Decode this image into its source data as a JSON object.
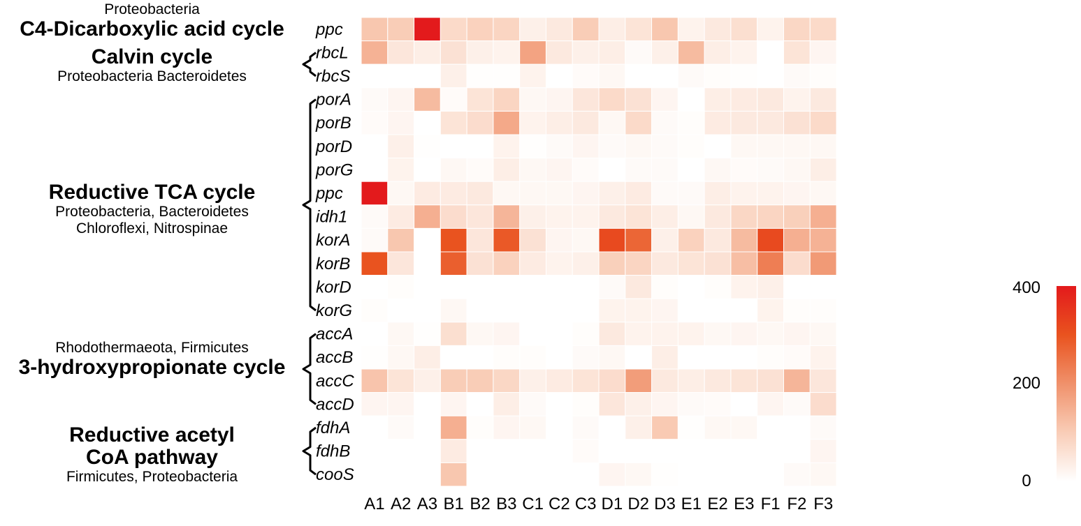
{
  "chart_data": {
    "type": "heatmap",
    "columns": [
      "A1",
      "A2",
      "A3",
      "B1",
      "B2",
      "B3",
      "C1",
      "C2",
      "C3",
      "D1",
      "D2",
      "D3",
      "E1",
      "E2",
      "E3",
      "F1",
      "F2",
      "F3"
    ],
    "rows": [
      "ppc",
      "rbcL",
      "rbcS",
      "porA",
      "porB",
      "porD",
      "porG",
      "ppc",
      "idh1",
      "korA",
      "korB",
      "korD",
      "korG",
      "accA",
      "accB",
      "accC",
      "accD",
      "fdhA",
      "fdhB",
      "cooS"
    ],
    "values": [
      [
        110,
        100,
        400,
        75,
        90,
        85,
        30,
        45,
        100,
        35,
        55,
        110,
        25,
        45,
        65,
        25,
        80,
        75
      ],
      [
        145,
        50,
        35,
        60,
        30,
        25,
        170,
        45,
        30,
        35,
        10,
        30,
        130,
        35,
        25,
        0,
        55,
        20
      ],
      [
        0,
        0,
        0,
        30,
        3,
        3,
        25,
        0,
        8,
        15,
        0,
        0,
        10,
        5,
        3,
        0,
        10,
        5
      ],
      [
        10,
        20,
        130,
        8,
        55,
        85,
        15,
        20,
        50,
        75,
        60,
        20,
        0,
        35,
        40,
        45,
        25,
        45
      ],
      [
        8,
        20,
        0,
        55,
        70,
        160,
        25,
        35,
        45,
        15,
        75,
        10,
        5,
        40,
        45,
        45,
        60,
        75
      ],
      [
        0,
        30,
        3,
        0,
        0,
        25,
        3,
        10,
        20,
        10,
        15,
        10,
        5,
        0,
        15,
        15,
        15,
        15
      ],
      [
        0,
        25,
        0,
        15,
        8,
        35,
        15,
        20,
        8,
        0,
        10,
        10,
        0,
        15,
        8,
        10,
        15,
        35
      ],
      [
        400,
        15,
        40,
        40,
        45,
        15,
        15,
        15,
        20,
        30,
        40,
        10,
        10,
        35,
        25,
        25,
        20,
        15
      ],
      [
        10,
        40,
        150,
        70,
        50,
        140,
        30,
        25,
        25,
        45,
        55,
        35,
        15,
        45,
        80,
        85,
        95,
        150
      ],
      [
        10,
        110,
        0,
        300,
        50,
        290,
        60,
        20,
        15,
        315,
        270,
        30,
        90,
        45,
        130,
        315,
        150,
        145
      ],
      [
        300,
        50,
        0,
        280,
        60,
        90,
        40,
        25,
        30,
        95,
        85,
        45,
        55,
        60,
        125,
        230,
        70,
        185
      ],
      [
        0,
        5,
        0,
        0,
        0,
        0,
        0,
        0,
        0,
        10,
        45,
        5,
        0,
        5,
        25,
        30,
        0,
        0
      ],
      [
        5,
        0,
        0,
        15,
        0,
        0,
        0,
        0,
        0,
        25,
        25,
        20,
        0,
        0,
        0,
        25,
        5,
        5
      ],
      [
        0,
        15,
        3,
        65,
        15,
        20,
        0,
        0,
        5,
        45,
        25,
        25,
        25,
        15,
        20,
        15,
        20,
        15
      ],
      [
        3,
        15,
        35,
        0,
        0,
        5,
        5,
        0,
        10,
        15,
        0,
        35,
        0,
        0,
        0,
        5,
        8,
        25
      ],
      [
        115,
        55,
        30,
        100,
        100,
        80,
        30,
        40,
        55,
        70,
        180,
        45,
        35,
        45,
        55,
        60,
        140,
        50
      ],
      [
        20,
        20,
        0,
        20,
        0,
        35,
        10,
        0,
        5,
        50,
        30,
        20,
        10,
        8,
        0,
        20,
        10,
        70
      ],
      [
        0,
        10,
        0,
        150,
        5,
        20,
        15,
        0,
        10,
        0,
        30,
        105,
        3,
        15,
        15,
        0,
        0,
        10
      ],
      [
        0,
        0,
        0,
        40,
        0,
        0,
        0,
        0,
        8,
        0,
        0,
        0,
        0,
        0,
        0,
        0,
        0,
        20
      ],
      [
        0,
        0,
        0,
        110,
        0,
        0,
        0,
        0,
        0,
        20,
        15,
        3,
        0,
        0,
        0,
        0,
        10,
        15
      ]
    ],
    "colorbar": {
      "min": 0,
      "max": 400,
      "ticks": [
        "400",
        "200",
        "0"
      ]
    },
    "groups": [
      {
        "rows": [
          0,
          0
        ],
        "lines": [
          {
            "text": "Proteobacteria",
            "style": "small"
          },
          {
            "text": "C4-Dicarboxylic acid cycle",
            "style": "big"
          }
        ]
      },
      {
        "rows": [
          1,
          2
        ],
        "lines": [
          {
            "text": "Calvin cycle",
            "style": "big"
          },
          {
            "text": "Proteobacteria Bacteroidetes",
            "style": "small"
          }
        ]
      },
      {
        "rows": [
          3,
          12
        ],
        "lines": [
          {
            "text": "Reductive TCA cycle",
            "style": "big"
          },
          {
            "text": "Proteobacteria, Bacteroidetes",
            "style": "small"
          },
          {
            "text": "Chloroflexi, Nitrospinae",
            "style": "small"
          }
        ]
      },
      {
        "rows": [
          13,
          16
        ],
        "lines": [
          {
            "text": "Rhodothermaeota, Firmicutes",
            "style": "small"
          },
          {
            "text": "3-hydroxypropionate cycle",
            "style": "big"
          }
        ]
      },
      {
        "rows": [
          17,
          19
        ],
        "lines": [
          {
            "text": "Reductive acetyl",
            "style": "big"
          },
          {
            "text": "CoA pathway",
            "style": "big"
          },
          {
            "text": "Firmicutes, Proteobacteria",
            "style": "small"
          }
        ]
      }
    ],
    "colors": {
      "low": "#ffffff",
      "mid": "#e8501f",
      "high": "#e31a1c"
    }
  }
}
